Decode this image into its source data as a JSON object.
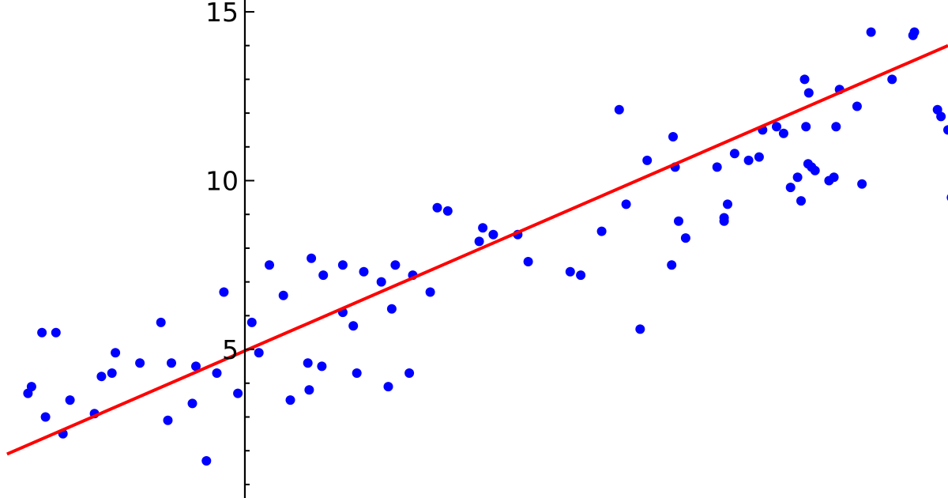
{
  "chart_data": {
    "type": "scatter",
    "title": "",
    "xlabel": "",
    "ylabel": "",
    "xlim": [
      -3.5,
      10.05
    ],
    "ylim": [
      0.6,
      15.35
    ],
    "grid": false,
    "legend": "none",
    "y_ticks": [
      5,
      10,
      15
    ],
    "y_tick_labels": [
      "5",
      "10",
      "15"
    ],
    "colors": {
      "points": "#0000ff",
      "fit_line": "#ff0000",
      "axis": "#000000"
    },
    "fit_line": {
      "x": [
        -3.4,
        10.05
      ],
      "y": [
        1.9,
        14.0
      ]
    },
    "points": {
      "x": [
        -3.1,
        -3.05,
        -2.9,
        -2.85,
        -2.7,
        -2.6,
        -2.5,
        -2.15,
        -2.05,
        -1.9,
        -1.85,
        -1.5,
        -1.2,
        -1.1,
        -1.05,
        -0.75,
        -0.7,
        -0.55,
        -0.4,
        -0.3,
        -0.1,
        0.1,
        0.2,
        0.35,
        0.55,
        0.65,
        0.9,
        0.92,
        0.95,
        1.1,
        1.12,
        1.4,
        1.4,
        1.55,
        1.6,
        1.7,
        1.95,
        2.05,
        2.1,
        2.15,
        2.35,
        2.4,
        2.65,
        2.75,
        2.9,
        3.35,
        3.4,
        3.55,
        3.9,
        4.05,
        4.65,
        4.8,
        5.1,
        5.35,
        5.45,
        5.65,
        5.75,
        6.1,
        6.12,
        6.15,
        6.2,
        6.3,
        6.75,
        6.85,
        6.85,
        6.9,
        7.0,
        7.2,
        7.35,
        7.4,
        7.6,
        7.7,
        7.8,
        7.9,
        7.95,
        8.0,
        8.02,
        8.05,
        8.06,
        8.1,
        8.15,
        8.35,
        8.42,
        8.45,
        8.5,
        8.75,
        8.82,
        8.95,
        9.25,
        9.55,
        9.57,
        9.95,
        10.05,
        10.1,
        9.9
      ],
      "y": [
        3.7,
        3.9,
        5.5,
        3.0,
        5.5,
        2.5,
        3.5,
        3.1,
        4.2,
        4.3,
        4.9,
        4.6,
        5.8,
        2.9,
        4.6,
        3.4,
        4.5,
        1.7,
        4.3,
        6.7,
        3.7,
        5.8,
        4.9,
        7.5,
        6.6,
        3.5,
        4.6,
        3.8,
        7.7,
        4.5,
        7.2,
        6.1,
        7.5,
        5.7,
        4.3,
        7.3,
        7.0,
        3.9,
        6.2,
        7.5,
        4.3,
        7.2,
        6.7,
        9.2,
        9.1,
        8.2,
        8.6,
        8.4,
        8.4,
        7.6,
        7.3,
        7.2,
        8.5,
        12.1,
        9.3,
        5.6,
        10.6,
        7.5,
        11.3,
        10.4,
        8.8,
        8.3,
        10.4,
        8.8,
        8.9,
        9.3,
        10.8,
        10.6,
        10.7,
        11.5,
        11.6,
        11.4,
        9.8,
        10.1,
        9.4,
        13.0,
        11.6,
        10.5,
        12.6,
        10.4,
        10.3,
        10.0,
        10.1,
        11.6,
        12.7,
        12.2,
        9.9,
        14.4,
        13.0,
        14.3,
        14.4,
        11.9,
        11.5,
        9.5,
        12.1
      ]
    }
  }
}
